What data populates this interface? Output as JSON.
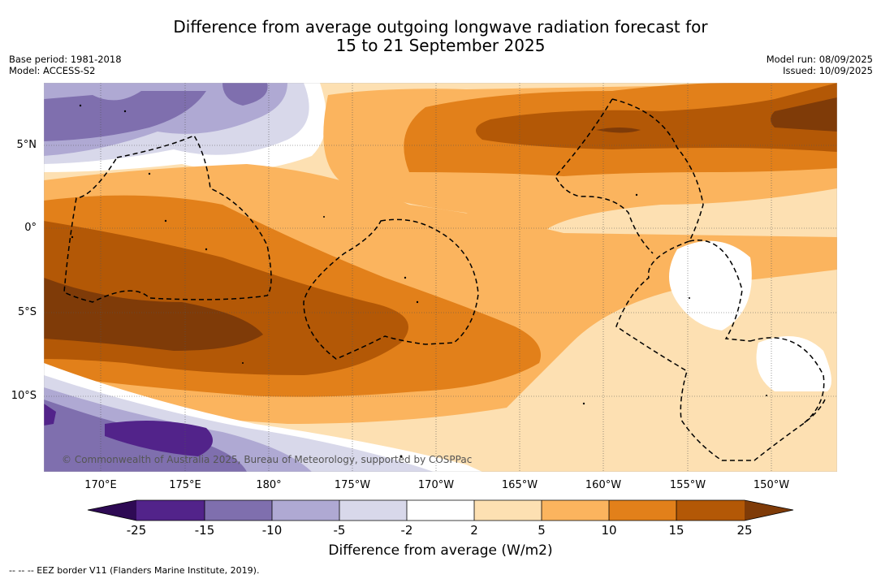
{
  "title": {
    "line1": "Difference from average outgoing longwave radiation forecast for",
    "line2": "15 to 21 September 2025"
  },
  "info_left": {
    "base_period": "Base period: 1981-2018",
    "model": "Model: ACCESS-S2"
  },
  "info_right": {
    "model_run": "Model run: 08/09/2025",
    "issued": "Issued: 10/09/2025"
  },
  "map": {
    "lon_labels": [
      "170°E",
      "175°E",
      "180°",
      "175°W",
      "170°W",
      "165°W",
      "160°W",
      "155°W",
      "150°W"
    ],
    "lat_labels": [
      "5°N",
      "0°",
      "5°S",
      "10°S"
    ],
    "credit": "© Commonwealth of Australia 2025, Bureau of Meteorology, supported by COSPPac",
    "extent": {
      "lon_min": 166.5,
      "lon_max": 213.8,
      "lat_max": 8.7,
      "lat_min": -14.5
    }
  },
  "colorbar": {
    "label": "Difference from average (W/m2)",
    "ticks": [
      "-25",
      "-15",
      "-10",
      "-5",
      "-2",
      "2",
      "5",
      "10",
      "15",
      "25"
    ],
    "colors": [
      "#2e0a54",
      "#52238a",
      "#7f6fae",
      "#afa9d3",
      "#d8d8ea",
      "#ffffff",
      "#fde0b2",
      "#fbb45e",
      "#e2801a",
      "#b35806",
      "#7f3b08"
    ]
  },
  "legend_note": "--  --  -- EEZ border V11 (Flanders Marine Institute, 2019)."
}
